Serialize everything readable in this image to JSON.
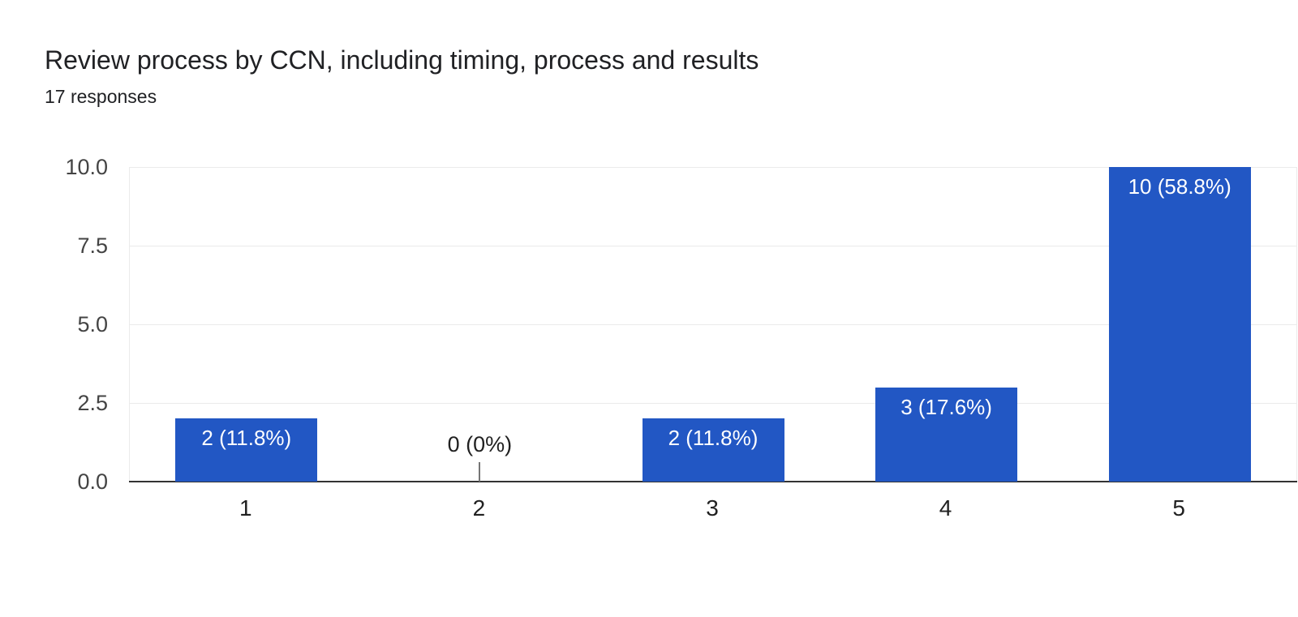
{
  "header": {
    "title": "Review process by CCN, including timing, process and results",
    "subtitle": "17 responses"
  },
  "colors": {
    "background": "#ffffff",
    "bar": "#2257c4",
    "bar_label": "#ffffff",
    "gridline": "#ebebeb",
    "axis_line": "#333333",
    "y_tick_text": "#444444",
    "x_tick_text": "#212121",
    "title_text": "#202124",
    "zero_label_text": "#212121",
    "zero_stem": "#757575"
  },
  "chart_data": {
    "type": "bar",
    "title": "Review process by CCN, including timing, process and results",
    "subtitle": "17 responses",
    "total_responses": 17,
    "categories": [
      "1",
      "2",
      "3",
      "4",
      "5"
    ],
    "values": [
      2,
      0,
      2,
      3,
      10
    ],
    "bar_labels": [
      "2 (11.8%)",
      "0 (0%)",
      "2 (11.8%)",
      "3 (17.6%)",
      "10 (58.8%)"
    ],
    "percentages": [
      11.8,
      0,
      11.8,
      17.6,
      58.8
    ],
    "xlabel": "",
    "ylabel": "",
    "ylim": [
      0,
      10
    ],
    "yticks": [
      0,
      2.5,
      5,
      7.5,
      10
    ],
    "ytick_labels": [
      "0.0",
      "2.5",
      "5.0",
      "7.5",
      "10.0"
    ],
    "grid": true,
    "legend": "none"
  }
}
